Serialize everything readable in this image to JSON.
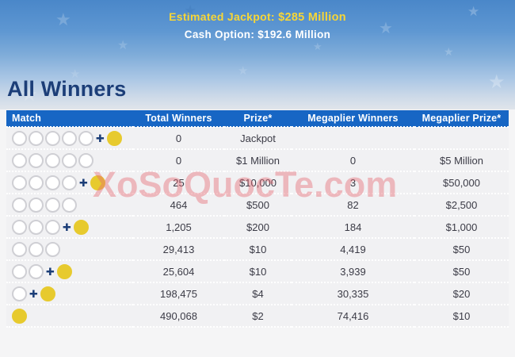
{
  "banner": {
    "jackpot_label": "Estimated Jackpot:",
    "jackpot_value": "$285 Million",
    "cash_label": "Cash Option:",
    "cash_value": "$192.6 Million"
  },
  "page_title": "All Winners",
  "watermark": "XoSoQuocTe.com",
  "table": {
    "headers": [
      "Match",
      "Total Winners",
      "Prize*",
      "Megaplier Winners",
      "Megaplier Prize*"
    ],
    "rows": [
      {
        "white_balls": 5,
        "mega_ball": true,
        "total_winners": "0",
        "prize": "Jackpot",
        "megaplier_winners": "",
        "megaplier_prize": ""
      },
      {
        "white_balls": 5,
        "mega_ball": false,
        "total_winners": "0",
        "prize": "$1 Million",
        "megaplier_winners": "0",
        "megaplier_prize": "$5 Million"
      },
      {
        "white_balls": 4,
        "mega_ball": true,
        "total_winners": "25",
        "prize": "$10,000",
        "megaplier_winners": "3",
        "megaplier_prize": "$50,000"
      },
      {
        "white_balls": 4,
        "mega_ball": false,
        "total_winners": "464",
        "prize": "$500",
        "megaplier_winners": "82",
        "megaplier_prize": "$2,500"
      },
      {
        "white_balls": 3,
        "mega_ball": true,
        "total_winners": "1,205",
        "prize": "$200",
        "megaplier_winners": "184",
        "megaplier_prize": "$1,000"
      },
      {
        "white_balls": 3,
        "mega_ball": false,
        "total_winners": "29,413",
        "prize": "$10",
        "megaplier_winners": "4,419",
        "megaplier_prize": "$50"
      },
      {
        "white_balls": 2,
        "mega_ball": true,
        "total_winners": "25,604",
        "prize": "$10",
        "megaplier_winners": "3,939",
        "megaplier_prize": "$50"
      },
      {
        "white_balls": 1,
        "mega_ball": true,
        "total_winners": "198,475",
        "prize": "$4",
        "megaplier_winners": "30,335",
        "megaplier_prize": "$20"
      },
      {
        "white_balls": 0,
        "mega_ball": true,
        "total_winners": "490,068",
        "prize": "$2",
        "megaplier_winners": "74,416",
        "megaplier_prize": "$10"
      }
    ]
  },
  "colors": {
    "header_blue": "#1766c4",
    "banner_blue_top": "#4a87c9",
    "jackpot_yellow": "#f7d636",
    "mega_yellow": "#e7ca2e",
    "title_navy": "#1c3e78",
    "row_bg": "#f1f1f3",
    "cell_text": "#3b3b46",
    "page_bg": "#f5f5f6",
    "watermark_pink": "#e76872"
  }
}
